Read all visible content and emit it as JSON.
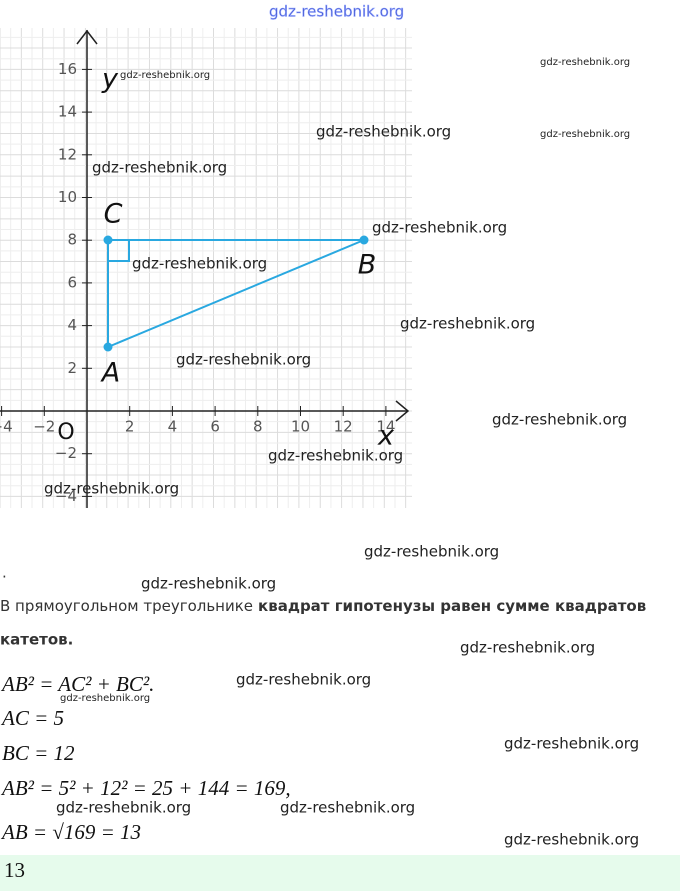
{
  "watermarks": [
    "gdz-reshebnik.org",
    "gdz-reshebnik.org",
    "gdz-reshebnik.org",
    "gdz-reshebnik.org",
    "gdz-reshebnik.org",
    "gdz-reshebnik.org",
    "gdz-reshebnik.org",
    "gdz-reshebnik.org",
    "gdz-reshebnik.org",
    "gdz-reshebnik.org",
    "gdz-reshebnik.org",
    "gdz-reshebnik.org",
    "gdz-reshebnik.org",
    "gdz-reshebnik.org",
    "gdz-reshebnik.org",
    "gdz-reshebnik.org",
    "gdz-reshebnik.org",
    "gdz-reshebnik.org",
    "gdz-reshebnik.org",
    "gdz-reshebnik.org",
    "gdz-reshebnik.org",
    "gdz-reshebnik.org"
  ],
  "figure": {
    "y_axis_label": "y",
    "x_axis_label": "x",
    "origin_label": "O",
    "x_tick_labels": [
      "−4",
      "−2",
      "2",
      "4",
      "6",
      "8",
      "10",
      "12",
      "14"
    ],
    "y_tick_labels": [
      "16",
      "14",
      "12",
      "10",
      "8",
      "6",
      "4",
      "2",
      "−2",
      "−4"
    ],
    "points": [
      "A",
      "B",
      "C"
    ]
  },
  "text": {
    "stray_dot": ".",
    "paragraph_plain": "В прямоугольном треугольнике",
    "paragraph_bold": "квадрат гипотенузы равен сумме квадратов",
    "paragraph_bold_cont": "катетов.",
    "formulas": [
      "AB² = AC² + BC².",
      "AC = 5",
      "BC = 12",
      "AB² = 5² + 12² = 25 + 144 = 169,",
      "AB = √169 = 13"
    ],
    "answer": "13"
  }
}
